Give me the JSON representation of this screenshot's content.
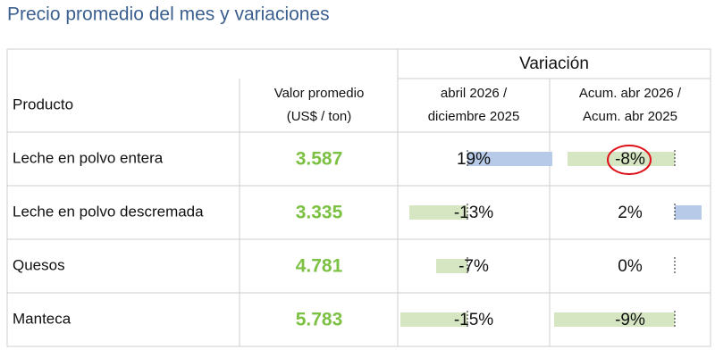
{
  "title": "Precio promedio del mes y variaciones",
  "table": {
    "group_header": "Variación",
    "columns": [
      "Producto",
      [
        "Valor promedio",
        "(US$ / ton)"
      ],
      [
        "abril 2026 /",
        "diciembre 2025"
      ],
      [
        "Acum. abr 2026 /",
        "Acum. abr 2025"
      ]
    ],
    "rows": [
      {
        "product": "Leche en polvo entera",
        "price": "3.587",
        "var_month": {
          "value": 19,
          "label": "19%"
        },
        "var_ytd": {
          "value": -8,
          "label": "-8%"
        }
      },
      {
        "product": "Leche en polvo descremada",
        "price": "3.335",
        "var_month": {
          "value": -13,
          "label": "-13%"
        },
        "var_ytd": {
          "value": 2,
          "label": "2%"
        }
      },
      {
        "product": "Quesos",
        "price": "4.781",
        "var_month": {
          "value": -7,
          "label": "-7%"
        },
        "var_ytd": {
          "value": 0,
          "label": "0%"
        }
      },
      {
        "product": "Manteca",
        "price": "5.783",
        "var_month": {
          "value": -15,
          "label": "-15%"
        },
        "var_ytd": {
          "value": -9,
          "label": "-9%"
        }
      }
    ]
  }
}
